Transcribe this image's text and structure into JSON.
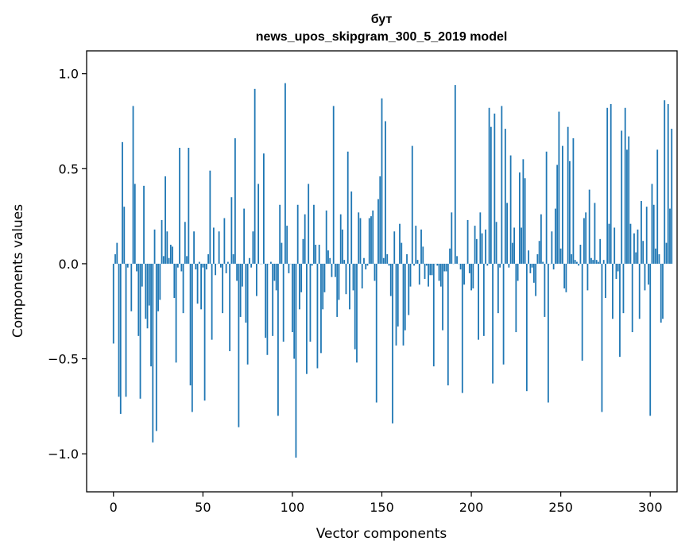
{
  "chart_data": {
    "type": "bar",
    "title": "бут",
    "subtitle": "news_upos_skipgram_300_5_2019 model",
    "xlabel": "Vector components",
    "ylabel": "Components values",
    "xlim": [
      -15,
      315
    ],
    "ylim": [
      -1.2,
      1.12
    ],
    "xticks": [
      0,
      50,
      100,
      150,
      200,
      250,
      300
    ],
    "xtick_labels": [
      "0",
      "50",
      "100",
      "150",
      "200",
      "250",
      "300"
    ],
    "yticks": [
      -1.0,
      -0.5,
      0.0,
      0.5,
      1.0
    ],
    "ytick_labels": [
      "−1.0",
      "−0.5",
      "0.0",
      "0.5",
      "1.0"
    ],
    "grid": false,
    "bar_color": "#1f77b4",
    "values": [
      -0.42,
      0.05,
      0.11,
      -0.7,
      -0.79,
      0.64,
      0.3,
      -0.7,
      -0.02,
      0.0,
      -0.25,
      0.83,
      0.42,
      -0.04,
      -0.38,
      -0.71,
      -0.12,
      0.41,
      -0.29,
      -0.34,
      -0.22,
      -0.54,
      -0.94,
      0.18,
      -0.88,
      -0.25,
      -0.19,
      0.23,
      0.04,
      0.46,
      0.17,
      0.03,
      0.1,
      0.09,
      -0.18,
      -0.52,
      -0.02,
      0.61,
      -0.04,
      -0.26,
      0.22,
      0.04,
      0.61,
      -0.64,
      -0.78,
      0.17,
      -0.03,
      -0.21,
      0.01,
      -0.24,
      -0.02,
      -0.72,
      -0.03,
      0.05,
      0.49,
      -0.4,
      0.19,
      -0.06,
      0.0,
      0.17,
      -0.02,
      -0.26,
      0.24,
      -0.05,
      0.01,
      -0.46,
      0.35,
      0.05,
      0.66,
      -0.09,
      -0.86,
      -0.28,
      -0.12,
      0.29,
      -0.31,
      -0.53,
      0.03,
      -0.02,
      0.17,
      0.92,
      -0.17,
      0.42,
      0.0,
      0.0,
      0.58,
      -0.39,
      -0.48,
      0.0,
      0.01,
      -0.38,
      -0.09,
      -0.14,
      -0.8,
      0.31,
      0.11,
      -0.41,
      0.95,
      0.2,
      -0.05,
      0.0,
      -0.36,
      -0.5,
      -1.02,
      0.31,
      -0.24,
      -0.15,
      0.13,
      0.26,
      -0.58,
      0.42,
      -0.41,
      -0.01,
      0.31,
      0.1,
      -0.55,
      0.1,
      -0.47,
      -0.24,
      -0.15,
      0.28,
      0.07,
      0.03,
      -0.07,
      0.83,
      -0.07,
      -0.28,
      -0.19,
      0.26,
      0.18,
      0.02,
      -0.16,
      0.59,
      -0.24,
      0.38,
      -0.14,
      -0.45,
      -0.52,
      0.27,
      0.24,
      -0.13,
      0.03,
      -0.03,
      -0.01,
      0.24,
      0.25,
      0.28,
      -0.09,
      -0.73,
      0.34,
      0.46,
      0.87,
      0.03,
      0.75,
      0.05,
      -0.01,
      -0.17,
      -0.84,
      0.17,
      -0.43,
      -0.33,
      0.21,
      0.11,
      -0.43,
      -0.35,
      0.05,
      -0.27,
      -0.12,
      0.62,
      -0.01,
      0.2,
      0.02,
      -0.11,
      0.18,
      0.09,
      -0.08,
      -0.01,
      -0.12,
      -0.06,
      -0.06,
      -0.54,
      0.0,
      -0.01,
      -0.09,
      -0.12,
      -0.35,
      -0.04,
      -0.04,
      -0.64,
      0.08,
      0.27,
      0.0,
      0.94,
      0.04,
      0.0,
      -0.03,
      -0.68,
      -0.11,
      0.0,
      0.23,
      -0.05,
      -0.14,
      -0.13,
      0.2,
      0.13,
      -0.4,
      0.27,
      0.16,
      -0.38,
      0.18,
      -0.01,
      0.82,
      0.72,
      -0.63,
      0.79,
      0.22,
      -0.26,
      -0.02,
      0.83,
      -0.53,
      0.71,
      0.32,
      -0.02,
      0.57,
      0.11,
      0.19,
      -0.36,
      -0.09,
      0.48,
      0.19,
      0.55,
      0.45,
      -0.67,
      0.07,
      -0.05,
      -0.02,
      -0.1,
      -0.17,
      0.05,
      0.12,
      0.26,
      0.01,
      -0.28,
      0.59,
      -0.73,
      0.0,
      0.17,
      -0.03,
      0.29,
      0.52,
      0.8,
      0.08,
      0.62,
      -0.13,
      -0.15,
      0.72,
      0.54,
      0.05,
      0.66,
      0.02,
      0.01,
      -0.01,
      0.1,
      -0.51,
      0.24,
      0.27,
      -0.14,
      0.39,
      0.03,
      0.02,
      0.32,
      0.02,
      0.01,
      0.13,
      -0.78,
      0.02,
      -0.18,
      0.82,
      0.21,
      0.84,
      -0.29,
      0.19,
      -0.08,
      -0.04,
      -0.49,
      0.7,
      -0.26,
      0.82,
      0.6,
      0.67,
      0.21,
      -0.36,
      0.16,
      0.06,
      0.18,
      -0.29,
      0.33,
      0.12,
      -0.14,
      0.3,
      -0.11,
      -0.8,
      0.42,
      0.31,
      0.08,
      0.6,
      0.05,
      -0.31,
      -0.29,
      0.86,
      0.11,
      0.84,
      0.29,
      0.71
    ]
  }
}
